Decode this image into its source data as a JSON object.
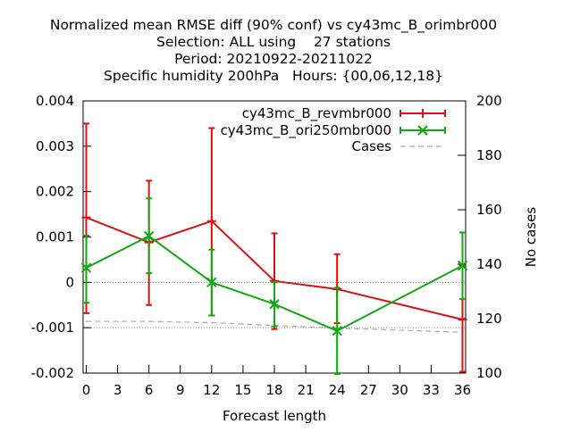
{
  "chart_data": {
    "type": "line",
    "title_lines": [
      "Normalized mean RMSE diff (90% conf) vs cy43mc_B_orimbr000",
      "Selection: ALL using    27 stations",
      "Period: 20210922-20211022",
      "Specific humidity 200hPa   Hours: {00,06,12,18}"
    ],
    "xlabel": "Forecast length",
    "ylabel": "",
    "y2label": "No cases",
    "x_ticks": [
      0,
      3,
      6,
      9,
      12,
      15,
      18,
      21,
      24,
      27,
      30,
      33,
      36
    ],
    "y_ticks": [
      "0.004",
      "0.003",
      "0.002",
      "0.001",
      "0",
      "-0.001",
      "-0.002"
    ],
    "y_tick_values": [
      0.004,
      0.003,
      0.002,
      0.001,
      0,
      -0.001,
      -0.002
    ],
    "y2_ticks": [
      200,
      180,
      160,
      140,
      120,
      100
    ],
    "xlim": [
      -0.3,
      36.3
    ],
    "ylim": [
      -0.002,
      0.004
    ],
    "y2lim": [
      100,
      200
    ],
    "zero_line": true,
    "legend_position": "top-right",
    "series": [
      {
        "name": "cy43mc_B_revmbr000",
        "color": "#dd1111",
        "marker": "plus",
        "x": [
          0,
          6,
          12,
          18,
          24,
          36
        ],
        "y": [
          0.00143,
          0.00088,
          0.00135,
          3e-05,
          -0.00015,
          -0.00082
        ],
        "err_low": [
          -0.00068,
          -0.0005,
          -0.00073,
          -0.00103,
          -0.0009,
          -0.00197
        ],
        "err_high": [
          0.0035,
          0.00224,
          0.0034,
          0.00108,
          0.00062,
          0.00037
        ]
      },
      {
        "name": "cy43mc_B_ori250mbr000",
        "color": "#11aa11",
        "marker": "cross",
        "x": [
          0,
          6,
          12,
          18,
          24,
          36
        ],
        "y": [
          0.00032,
          0.00102,
          0.0,
          -0.00048,
          -0.00107,
          0.00037
        ],
        "err_low": [
          -0.00045,
          0.0002,
          -0.00073,
          -0.00097,
          -0.00202,
          -0.00037
        ],
        "err_high": [
          0.00103,
          0.00185,
          0.00072,
          0.0,
          -0.00012,
          0.0011
        ]
      },
      {
        "name": "Cases",
        "color": "#aaaaaa",
        "axis": "y2",
        "dashed": true,
        "x": [
          0,
          6,
          12,
          18,
          24,
          36
        ],
        "y": [
          119,
          119,
          118.5,
          117.5,
          116.5,
          115
        ]
      }
    ]
  }
}
